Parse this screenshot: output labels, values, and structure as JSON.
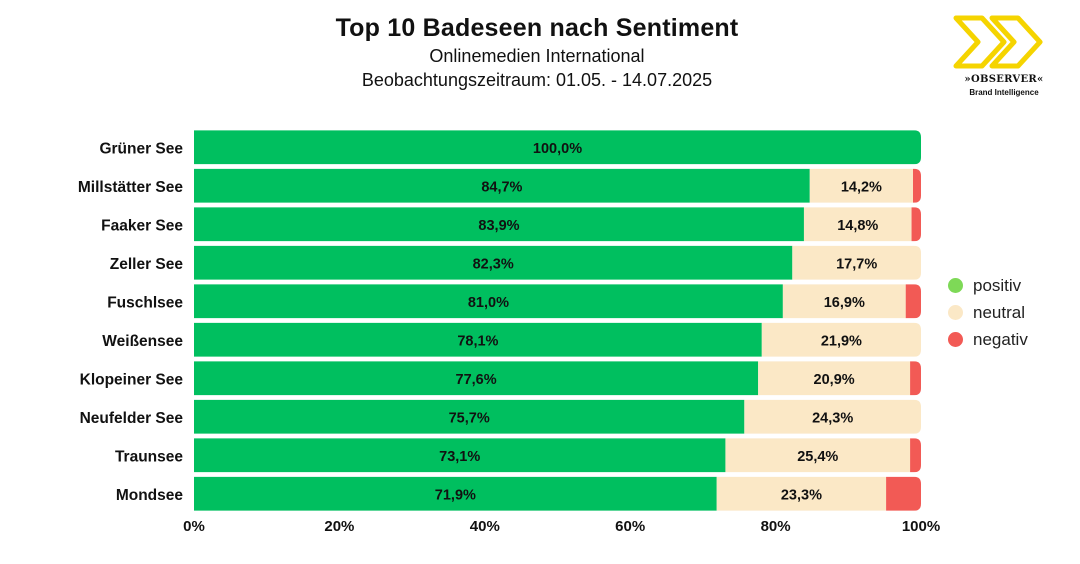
{
  "header": {
    "title": "Top 10 Badeseen nach Sentiment",
    "subtitle": "Onlinemedien International",
    "period": "Beobachtungszeitraum: 01.05. - 14.07.2025"
  },
  "logo": {
    "brand": "»OBSERVER«",
    "tagline": "Brand Intelligence",
    "color": "#f5d400"
  },
  "legend": [
    {
      "label": "positiv",
      "color": "#7ed957"
    },
    {
      "label": "neutral",
      "color": "#fbe8c6"
    },
    {
      "label": "negativ",
      "color": "#f25a55"
    }
  ],
  "chart_data": {
    "type": "bar",
    "orientation": "horizontal",
    "stacked": true,
    "title": "Top 10 Badeseen nach Sentiment",
    "categories": [
      "Grüner See",
      "Millstätter See",
      "Faaker See",
      "Zeller See",
      "Fuschlsee",
      "Weißensee",
      "Klopeiner See",
      "Neufelder See",
      "Traunsee",
      "Mondsee"
    ],
    "series": [
      {
        "name": "positiv",
        "color": "#00bf5f",
        "values": [
          100.0,
          84.7,
          83.9,
          82.3,
          81.0,
          78.1,
          77.6,
          75.7,
          73.1,
          71.9
        ],
        "labels": [
          "100,0%",
          "84,7%",
          "83,9%",
          "82,3%",
          "81,0%",
          "78,1%",
          "77,6%",
          "75,7%",
          "73,1%",
          "71,9%"
        ]
      },
      {
        "name": "neutral",
        "color": "#fbe8c6",
        "values": [
          0.0,
          14.2,
          14.8,
          17.7,
          16.9,
          21.9,
          20.9,
          24.3,
          25.4,
          23.3
        ],
        "labels": [
          "",
          "14,2%",
          "14,8%",
          "17,7%",
          "16,9%",
          "21,9%",
          "20,9%",
          "24,3%",
          "25,4%",
          "23,3%"
        ]
      },
      {
        "name": "negativ",
        "color": "#f25a55",
        "values": [
          0.0,
          1.1,
          1.3,
          0.0,
          2.1,
          0.0,
          1.5,
          0.0,
          1.5,
          4.8
        ],
        "labels": [
          "",
          "",
          "",
          "",
          "",
          "",
          "",
          "",
          "",
          ""
        ]
      }
    ],
    "xlim": [
      0,
      100
    ],
    "xticks": [
      "0%",
      "20%",
      "40%",
      "60%",
      "80%",
      "100%"
    ],
    "xlabel": "",
    "ylabel": "",
    "grid": false,
    "legend_position": "right"
  }
}
